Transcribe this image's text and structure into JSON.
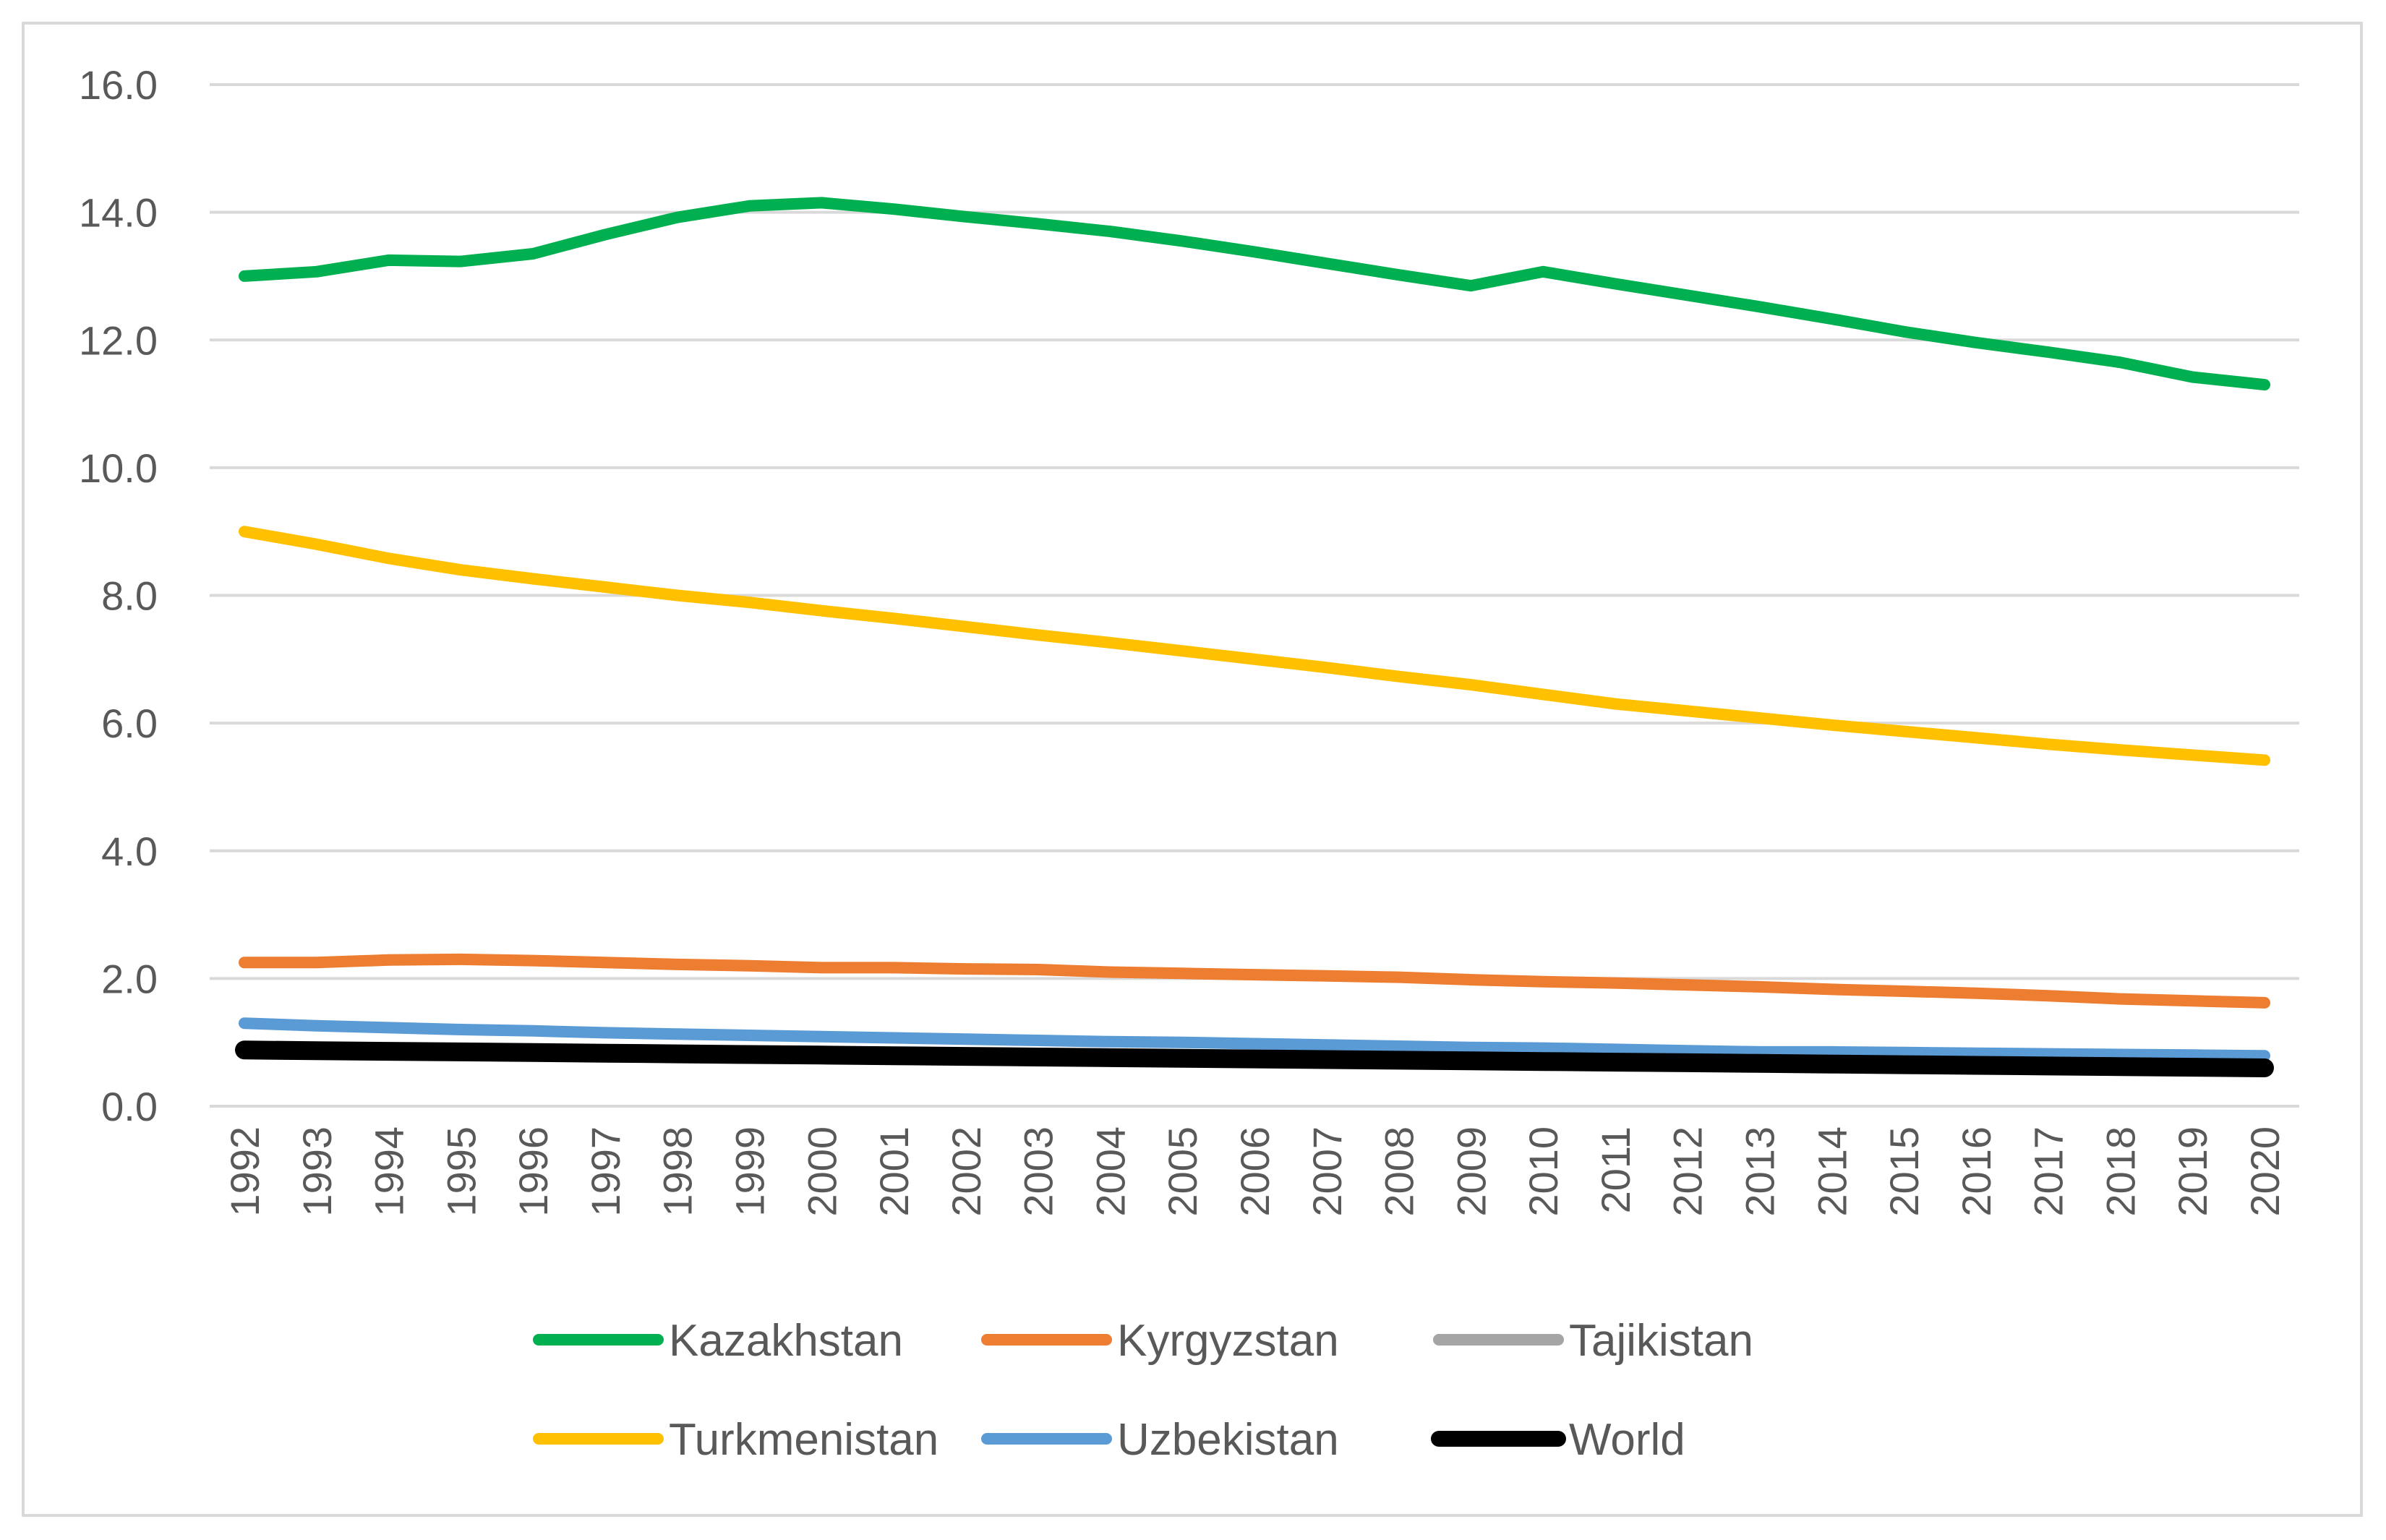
{
  "chart_data": {
    "type": "line",
    "title": "",
    "xlabel": "",
    "ylabel": "",
    "ylim": [
      0,
      16
    ],
    "yticks": [
      0,
      2,
      4,
      6,
      8,
      10,
      12,
      14,
      16
    ],
    "ytick_labels": [
      "0.0",
      "2.0",
      "4.0",
      "6.0",
      "8.0",
      "10.0",
      "12.0",
      "14.0",
      "16.0"
    ],
    "grid": true,
    "legend_position": "bottom",
    "categories": [
      "1992",
      "1993",
      "1994",
      "1995",
      "1996",
      "1997",
      "1998",
      "1999",
      "2000",
      "2001",
      "2002",
      "2003",
      "2004",
      "2005",
      "2006",
      "2007",
      "2008",
      "2009",
      "2010",
      "2011",
      "2012",
      "2013",
      "2014",
      "2015",
      "2016",
      "2017",
      "2018",
      "2019",
      "2020"
    ],
    "series": [
      {
        "name": "Kazakhstan",
        "color": "#00b050",
        "values": [
          13.0,
          13.07,
          13.25,
          13.23,
          13.35,
          13.65,
          13.92,
          14.1,
          14.15,
          14.05,
          13.93,
          13.82,
          13.7,
          13.55,
          13.38,
          13.2,
          13.02,
          12.85,
          13.07,
          12.88,
          12.7,
          12.52,
          12.33,
          12.13,
          11.96,
          11.81,
          11.65,
          11.42,
          11.3
        ]
      },
      {
        "name": "Kyrgyzstan",
        "color": "#ed7d31",
        "values": [
          2.25,
          2.25,
          2.29,
          2.3,
          2.28,
          2.25,
          2.22,
          2.2,
          2.17,
          2.17,
          2.15,
          2.14,
          2.1,
          2.08,
          2.06,
          2.04,
          2.02,
          1.98,
          1.95,
          1.93,
          1.9,
          1.87,
          1.83,
          1.8,
          1.77,
          1.73,
          1.68,
          1.65,
          1.62
        ]
      },
      {
        "name": "Tajikistan",
        "color": "#a5a5a5",
        "values": [
          0.85,
          0.84,
          0.83,
          0.82,
          0.81,
          0.8,
          0.79,
          0.78,
          0.77,
          0.76,
          0.75,
          0.74,
          0.73,
          0.72,
          0.71,
          0.7,
          0.69,
          0.68,
          0.67,
          0.66,
          0.65,
          0.64,
          0.63,
          0.62,
          0.61,
          0.6,
          0.59,
          0.58,
          0.57
        ]
      },
      {
        "name": "Turkmenistan",
        "color": "#ffc000",
        "values": [
          9.0,
          8.8,
          8.58,
          8.4,
          8.26,
          8.13,
          8.0,
          7.89,
          7.76,
          7.64,
          7.51,
          7.38,
          7.26,
          7.13,
          7.0,
          6.87,
          6.73,
          6.6,
          6.45,
          6.3,
          6.19,
          6.08,
          5.97,
          5.87,
          5.77,
          5.67,
          5.58,
          5.5,
          5.42
        ]
      },
      {
        "name": "Uzbekistan",
        "color": "#5b9bd5",
        "values": [
          1.3,
          1.26,
          1.23,
          1.2,
          1.18,
          1.15,
          1.13,
          1.11,
          1.09,
          1.07,
          1.05,
          1.03,
          1.01,
          1.0,
          0.98,
          0.96,
          0.94,
          0.92,
          0.91,
          0.89,
          0.87,
          0.85,
          0.85,
          0.84,
          0.83,
          0.82,
          0.81,
          0.8,
          0.79
        ]
      },
      {
        "name": "World",
        "color": "#000000",
        "values": [
          0.88,
          0.87,
          0.86,
          0.85,
          0.84,
          0.83,
          0.82,
          0.81,
          0.8,
          0.79,
          0.78,
          0.77,
          0.76,
          0.75,
          0.74,
          0.73,
          0.72,
          0.71,
          0.7,
          0.69,
          0.68,
          0.67,
          0.66,
          0.65,
          0.64,
          0.63,
          0.62,
          0.61,
          0.6
        ]
      }
    ]
  }
}
